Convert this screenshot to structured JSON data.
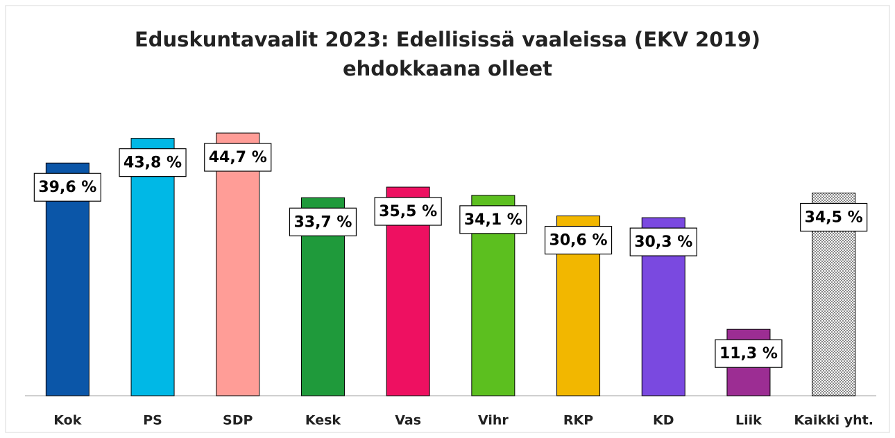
{
  "chart_data": {
    "type": "bar",
    "title": "Eduskuntavaalit 2023: Edellisissä vaaleissa (EKV 2019) ehdokkaana olleet",
    "categories": [
      "Kok",
      "PS",
      "SDP",
      "Kesk",
      "Vas",
      "Vihr",
      "RKP",
      "KD",
      "Liik",
      "Kaikki yht."
    ],
    "values": [
      39.6,
      43.8,
      44.7,
      33.7,
      35.5,
      34.1,
      30.6,
      30.3,
      11.3,
      34.5
    ],
    "value_labels": [
      "39,6 %",
      "43,8 %",
      "44,7 %",
      "33,7 %",
      "35,5 %",
      "34,1 %",
      "30,6 %",
      "30,3 %",
      "11,3 %",
      "34,5 %"
    ],
    "colors": [
      "#0b56a8",
      "#00b8e6",
      "#ff9d97",
      "#1f9a3b",
      "#ee1061",
      "#5cbf1f",
      "#f2b700",
      "#7a49e0",
      "#9c2d93",
      "#8a8a8a"
    ],
    "patterned": [
      false,
      false,
      false,
      false,
      false,
      false,
      false,
      false,
      false,
      true
    ],
    "grid": false
  }
}
